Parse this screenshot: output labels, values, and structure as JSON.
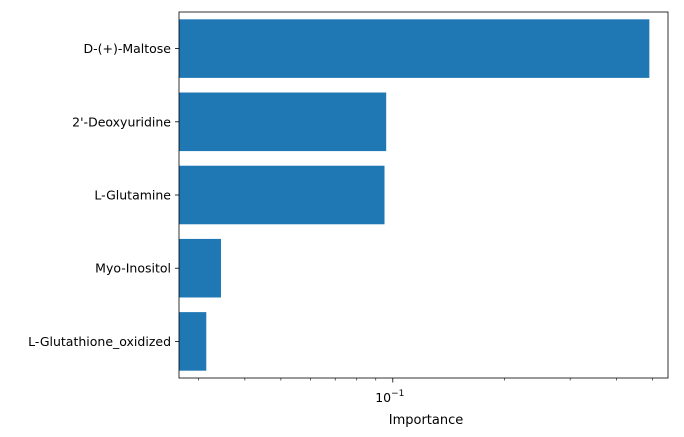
{
  "chart_data": {
    "type": "bar",
    "orientation": "horizontal",
    "categories": [
      "D-(+)-Maltose",
      "2'-Deoxyuridine",
      "L-Glutamine",
      "Myo-Inositol",
      "L-Glutathione_oxidized"
    ],
    "values": [
      0.49,
      0.096,
      0.095,
      0.0345,
      0.0315
    ],
    "xlabel": "Importance",
    "ylabel": "",
    "xscale": "log",
    "xlim": [
      0.0266,
      0.55
    ],
    "major_ticks": [
      {
        "value": 0.1,
        "label": "10",
        "exponent": "−1"
      }
    ],
    "minor_ticks": [
      0.03,
      0.04,
      0.05,
      0.06,
      0.07,
      0.08,
      0.09,
      0.2,
      0.3,
      0.4,
      0.5
    ],
    "grid": false,
    "legend": "none",
    "bar_color": "#1f77b4"
  }
}
